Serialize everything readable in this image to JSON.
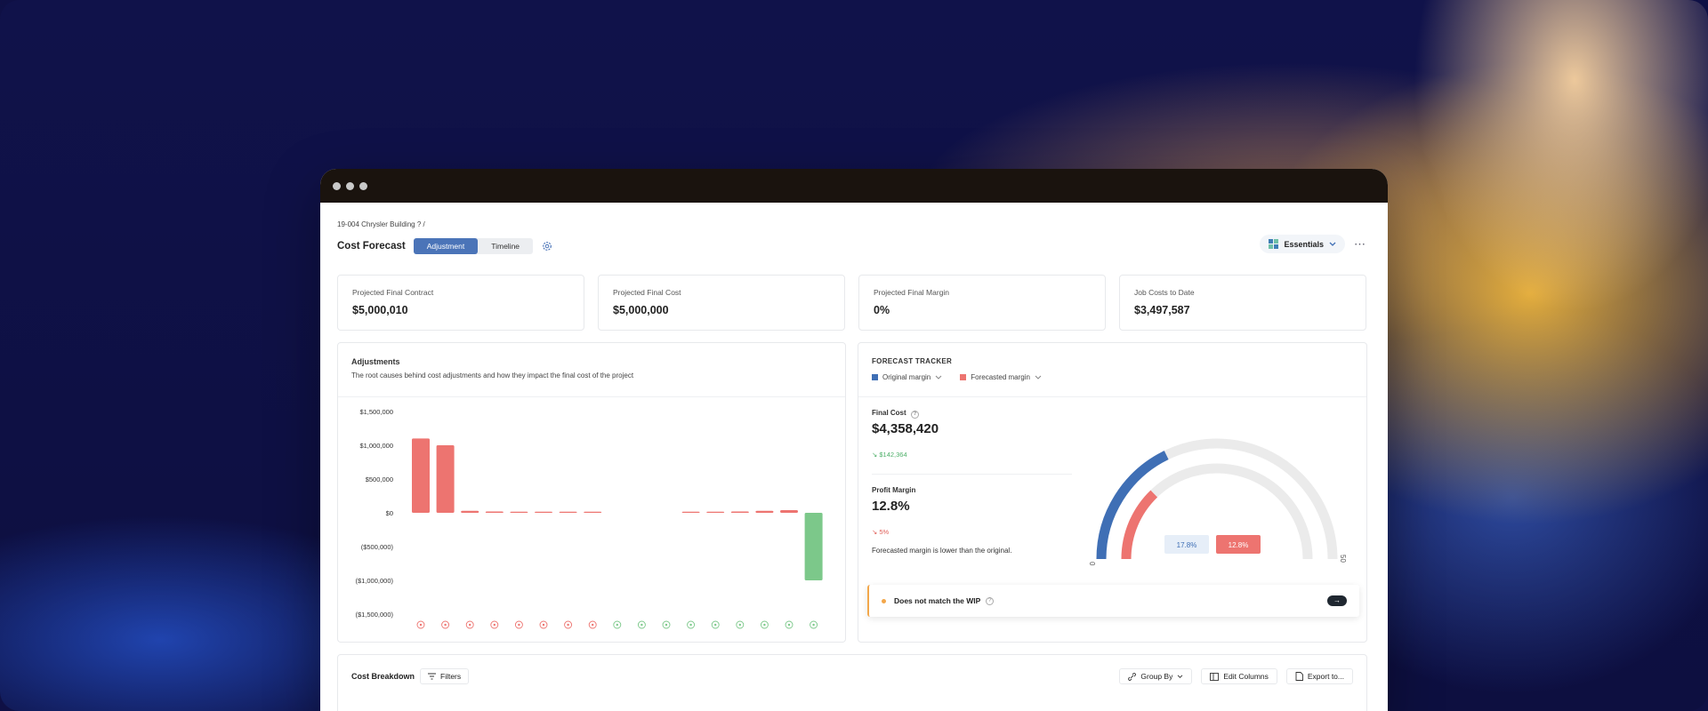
{
  "breadcrumb": "19-004 Chrysler Building ? /",
  "page_title": "Cost Forecast",
  "view_tabs": [
    {
      "label": "Adjustment",
      "active": true
    },
    {
      "label": "Timeline",
      "active": false
    }
  ],
  "essentials_label": "Essentials",
  "more_label": "⋯",
  "kpis": [
    {
      "label": "Projected Final Contract",
      "value": "$5,000,010"
    },
    {
      "label": "Projected Final Cost",
      "value": "$5,000,000"
    },
    {
      "label": "Projected Final Margin",
      "value": "0%"
    },
    {
      "label": "Job Costs to Date",
      "value": "$3,497,587"
    }
  ],
  "adjustments": {
    "title": "Adjustments",
    "description": "The root causes behind cost adjustments and how they impact the final cost of the project"
  },
  "chart_data": {
    "type": "bar",
    "title": "Adjustments",
    "ylim": [
      -1500000,
      1500000
    ],
    "yticks": [
      {
        "value": 1500000,
        "label": "$1,500,000"
      },
      {
        "value": 1000000,
        "label": "$1,000,000"
      },
      {
        "value": 500000,
        "label": "$500,000"
      },
      {
        "value": 0,
        "label": "$0"
      },
      {
        "value": -500000,
        "label": "($500,000)"
      },
      {
        "value": -1000000,
        "label": "($1,000,000)"
      },
      {
        "value": -1500000,
        "label": "($1,500,000)"
      }
    ],
    "values": [
      1100000,
      1000000,
      30000,
      20000,
      10000,
      5000,
      5000,
      3000,
      0,
      0,
      0,
      3000,
      10000,
      20000,
      30000,
      40000,
      -1000000
    ],
    "colors": {
      "positive": "#ed7470",
      "negative": "#7cc88a"
    },
    "category_icons": [
      "grid-icon",
      "cone-icon",
      "cloud-icon",
      "gauge-icon",
      "globe-icon",
      "bag-icon",
      "calendar-icon",
      "expand-icon",
      "clock-icon",
      "help-icon",
      "tools-icon",
      "speed-icon",
      "chart-icon",
      "tag-icon",
      "timer-icon",
      "apps-icon",
      "bulb-icon"
    ]
  },
  "forecast_tracker": {
    "title": "FORECAST TRACKER",
    "legend": [
      {
        "label": "Original margin",
        "color": "#3f6fb5"
      },
      {
        "label": "Forecasted margin",
        "color": "#ed7470"
      }
    ],
    "final_cost_label": "Final Cost",
    "final_cost_value": "$4,358,420",
    "final_cost_delta": "↘ $142,364",
    "profit_margin_label": "Profit Margin",
    "profit_margin_value": "12.8%",
    "profit_margin_delta": "↘ 5%",
    "note": "Forecasted margin is lower than the original.",
    "gauge": {
      "min_label": "0",
      "max_label": "50",
      "original": 17.8,
      "forecast": 12.8,
      "max": 50,
      "original_label": "17.8%",
      "forecast_label": "12.8%"
    },
    "wip_text": "Does not match the WIP",
    "wip_arrow": "→"
  },
  "cost_breakdown": {
    "title": "Cost Breakdown",
    "filters_label": "Filters",
    "group_by_label": "Group By",
    "edit_columns_label": "Edit Columns",
    "export_label": "Export to..."
  }
}
